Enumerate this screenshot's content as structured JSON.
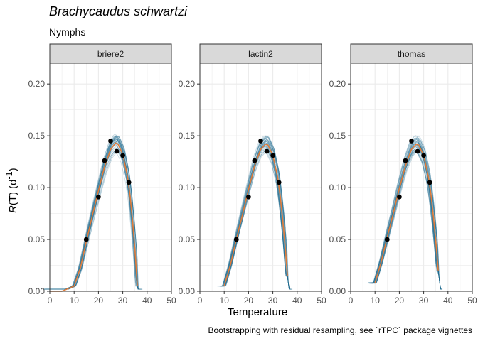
{
  "header": {
    "title": "Brachycaudus schwartzi",
    "subtitle": "Nymphs",
    "caption": "Bootstrapping with residual resampling, see `rTPC` package vignettes"
  },
  "colors": {
    "panel_strip": "#d9d9d9",
    "grid": "#ebebeb",
    "bootstrap_lines": "#1f6b8e",
    "fitted_line": "#e07b39",
    "points": "#000000"
  },
  "chart_data": {
    "type": "line",
    "xlabel": "Temperature",
    "ylabel": "R(T) (d^-1)",
    "xlim": [
      0,
      50
    ],
    "ylim": [
      0,
      0.22
    ],
    "x_ticks": [
      0,
      10,
      20,
      30,
      40,
      50
    ],
    "y_ticks": [
      0.0,
      0.05,
      0.1,
      0.15,
      0.2
    ],
    "y_tick_labels": [
      "0.00",
      "0.05",
      "0.10",
      "0.15",
      "0.20"
    ],
    "grid": true,
    "facets": [
      "briere2",
      "lactin2",
      "thomas"
    ],
    "observed": {
      "x": [
        15,
        20,
        22.5,
        25,
        27.5,
        30,
        32.5
      ],
      "y": [
        0.05,
        0.091,
        0.126,
        0.145,
        0.135,
        0.131,
        0.105
      ]
    },
    "fitted": {
      "briere2": {
        "x": [
          0,
          5,
          10,
          12.5,
          15,
          17.5,
          20,
          22.5,
          25,
          27,
          28,
          30,
          32,
          33,
          34,
          35,
          36
        ],
        "y": [
          0,
          0,
          0.005,
          0.022,
          0.048,
          0.073,
          0.097,
          0.12,
          0.137,
          0.143,
          0.142,
          0.132,
          0.11,
          0.092,
          0.068,
          0.04,
          0.005
        ]
      },
      "lactin2": {
        "x": [
          10,
          12.5,
          15,
          17.5,
          20,
          22.5,
          25,
          27,
          28,
          30,
          32,
          33,
          34,
          35,
          36
        ],
        "y": [
          0.005,
          0.025,
          0.05,
          0.074,
          0.098,
          0.121,
          0.137,
          0.142,
          0.141,
          0.131,
          0.11,
          0.092,
          0.07,
          0.045,
          0.015
        ]
      },
      "thomas": {
        "x": [
          10,
          12.5,
          15,
          17.5,
          20,
          22.5,
          25,
          27,
          28,
          30,
          32,
          33,
          34,
          35,
          36
        ],
        "y": [
          0.008,
          0.028,
          0.052,
          0.075,
          0.099,
          0.121,
          0.137,
          0.142,
          0.141,
          0.131,
          0.11,
          0.093,
          0.072,
          0.048,
          0.02
        ]
      }
    }
  }
}
